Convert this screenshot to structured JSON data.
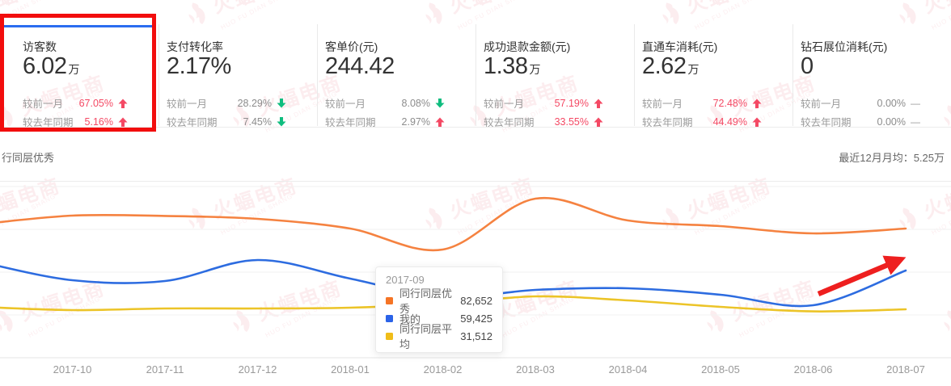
{
  "watermark": {
    "brand": "火蝠电商",
    "sub": "HUO FU DIAN SHANG"
  },
  "theme": {
    "up_color": "#f44964",
    "down_color": "#0fbd7f",
    "flat_color": "#9b9b9b",
    "gray_number": "#8c8c8c",
    "selected_bar": "#2b6df0",
    "annotation_red": "#f20d0d",
    "arrow_red": "#ee1f1f"
  },
  "metrics": {
    "cards": [
      {
        "key": "visitors",
        "title": "访客数",
        "value": "6.02",
        "suffix": "万",
        "selected": true,
        "highlighted": true,
        "rows": [
          {
            "label": "较前一月",
            "value": "67.05%",
            "dir": "up",
            "num_color": "red"
          },
          {
            "label": "较去年同期",
            "value": "5.16%",
            "dir": "up",
            "num_color": "red"
          }
        ]
      },
      {
        "key": "pay-conversion-rate",
        "title": "支付转化率",
        "value": "2.17%",
        "suffix": "",
        "rows": [
          {
            "label": "较前一月",
            "value": "28.29%",
            "dir": "down",
            "num_color": "gray"
          },
          {
            "label": "较去年同期",
            "value": "7.45%",
            "dir": "down",
            "num_color": "gray"
          }
        ]
      },
      {
        "key": "avg-order-value",
        "title": "客单价(元)",
        "value": "244.42",
        "suffix": "",
        "rows": [
          {
            "label": "较前一月",
            "value": "8.08%",
            "dir": "down",
            "num_color": "gray"
          },
          {
            "label": "较去年同期",
            "value": "2.97%",
            "dir": "up",
            "num_color": "gray"
          }
        ]
      },
      {
        "key": "refund-amount",
        "title": "成功退款金额(元)",
        "value": "1.38",
        "suffix": "万",
        "rows": [
          {
            "label": "较前一月",
            "value": "57.19%",
            "dir": "up",
            "num_color": "red"
          },
          {
            "label": "较去年同期",
            "value": "33.55%",
            "dir": "up",
            "num_color": "red"
          }
        ]
      },
      {
        "key": "ztc-spend",
        "title": "直通车消耗(元)",
        "value": "2.62",
        "suffix": "万",
        "rows": [
          {
            "label": "较前一月",
            "value": "72.48%",
            "dir": "up",
            "num_color": "red"
          },
          {
            "label": "较去年同期",
            "value": "44.49%",
            "dir": "up",
            "num_color": "red"
          }
        ]
      },
      {
        "key": "diamond-spend",
        "title": "钻石展位消耗(元)",
        "value": "0",
        "suffix": "",
        "rows": [
          {
            "label": "较前一月",
            "value": "0.00%",
            "dir": "flat",
            "num_color": "gray"
          },
          {
            "label": "较去年同期",
            "value": "0.00%",
            "dir": "flat",
            "num_color": "gray"
          }
        ]
      }
    ]
  },
  "section": {
    "left_label": "行同层优秀",
    "right_label": "最近12月月均：5.25万"
  },
  "chart_data": {
    "type": "line",
    "smooth": true,
    "grid": true,
    "x": [
      "2017-09",
      "2017-10",
      "2017-11",
      "2017-12",
      "2018-01",
      "2018-02",
      "2018-03",
      "2018-04",
      "2018-05",
      "2018-06",
      "2018-07"
    ],
    "series": [
      {
        "name": "同行同层优秀",
        "color": "#f58240",
        "values": [
          82652,
          88000,
          87800,
          86000,
          80000,
          67000,
          98500,
          85000,
          81500,
          77000,
          80000
        ]
      },
      {
        "name": "我的",
        "color": "#2d6ce0",
        "values": [
          59425,
          48000,
          47500,
          60500,
          49000,
          37500,
          42000,
          43000,
          39000,
          32500,
          54000
        ]
      },
      {
        "name": "同行同层平均",
        "color": "#ecc428",
        "values": [
          31512,
          29500,
          30500,
          30500,
          31000,
          33500,
          38000,
          35500,
          31500,
          28700,
          30000
        ]
      }
    ],
    "ylim": [
      0,
      110500
    ],
    "legend_position": "none"
  },
  "tooltip": {
    "title": "2017-09",
    "rows": [
      {
        "name": "同行同层优秀",
        "value": "82,652",
        "color": "#f57425"
      },
      {
        "name": "我的",
        "value": "59,425",
        "color": "#2b63e8"
      },
      {
        "name": "同行同层平均",
        "value": "31,512",
        "color": "#f0bd19"
      }
    ]
  }
}
